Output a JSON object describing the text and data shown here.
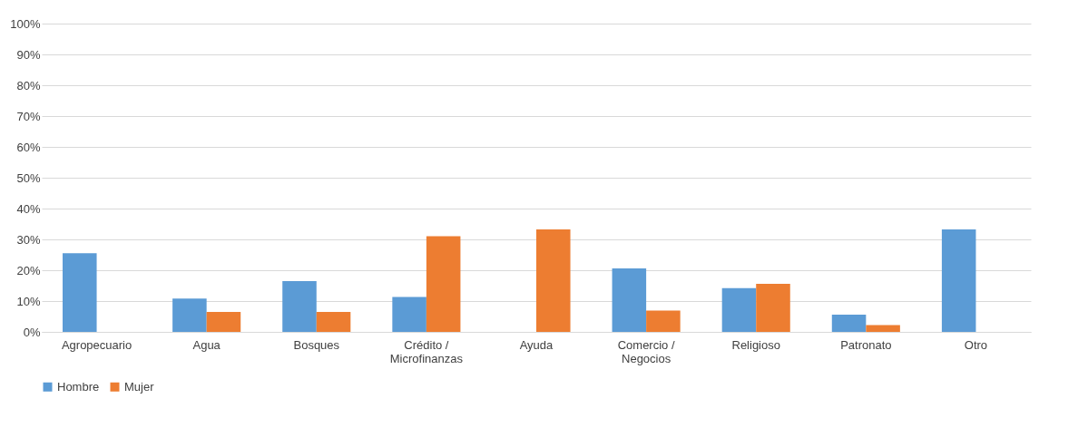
{
  "chart_data": {
    "type": "bar",
    "categories": [
      "Agropecuario",
      "Agua",
      "Bosques",
      "Crédito / Microfinanzas",
      "Ayuda",
      "Comercio / Negocios",
      "Religioso",
      "Patronato",
      "Otro"
    ],
    "series": [
      {
        "name": "Hombre",
        "color": "#5b9bd5",
        "values": [
          25.5,
          10.8,
          16.5,
          11.3,
          0,
          20.6,
          14.2,
          5.6,
          33.2
        ]
      },
      {
        "name": "Mujer",
        "color": "#ed7d31",
        "values": [
          0,
          6.5,
          6.5,
          31.0,
          33.2,
          6.9,
          15.6,
          2.2,
          0
        ]
      }
    ],
    "ylim": [
      0,
      100
    ],
    "yticks": [
      {
        "value": 0,
        "label": "0%"
      },
      {
        "value": 10,
        "label": "10%"
      },
      {
        "value": 20,
        "label": "20%"
      },
      {
        "value": 30,
        "label": "30%"
      },
      {
        "value": 40,
        "label": "40%"
      },
      {
        "value": 50,
        "label": "50%"
      },
      {
        "value": 60,
        "label": "60%"
      },
      {
        "value": 70,
        "label": "70%"
      },
      {
        "value": 80,
        "label": "80%"
      },
      {
        "value": 90,
        "label": "90%"
      },
      {
        "value": 100,
        "label": "100%"
      }
    ],
    "grid": "y",
    "legend": "bottom"
  }
}
